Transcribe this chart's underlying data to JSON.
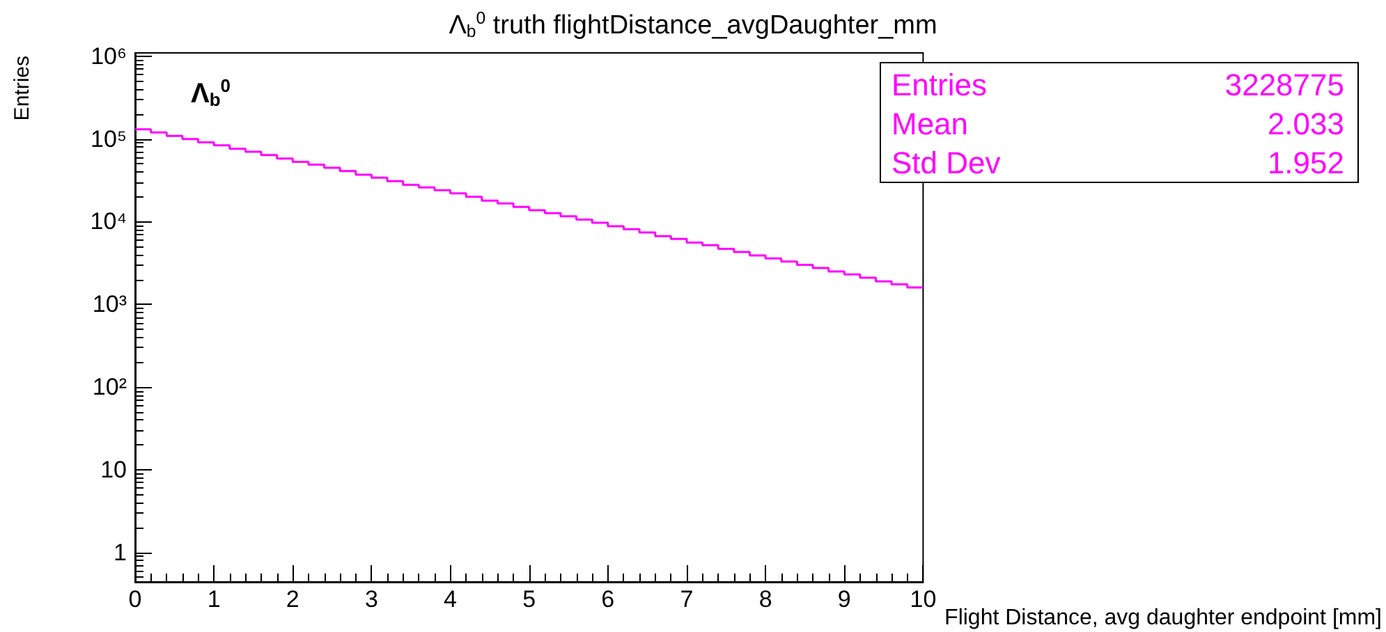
{
  "chart_data": {
    "type": "histogram",
    "title": "Λ$_{b}$$^{0}$ truth flightDistance_avgDaughter_mm",
    "xlabel": "Flight Distance, avg daughter endpoint [mm]",
    "ylabel": "Entries",
    "annotations": [
      "Λ$_{b}$$^{0}$",
      "Entries",
      "3228775",
      "Mean",
      "2.033",
      "Std Dev",
      "1.952"
    ],
    "bins": [
      0,
      0.2,
      0.4,
      0.6,
      0.8,
      1,
      1.2,
      1.4,
      1.6,
      1.8,
      2,
      2.2,
      2.4,
      2.6,
      2.8,
      3,
      3.2,
      3.4,
      3.6,
      3.8,
      4,
      4.2,
      4.4,
      4.6,
      4.8,
      5,
      5.2,
      5.4,
      5.6,
      5.8,
      6,
      6.2,
      6.4,
      6.6,
      6.8,
      7,
      7.2,
      7.4,
      7.6,
      7.8,
      8,
      8.2,
      8.4,
      8.6,
      8.8,
      9,
      9.2,
      9.4,
      9.6,
      9.8,
      10
    ],
    "values": [
      131000,
      120000,
      109000,
      100000,
      91000,
      84000,
      76000,
      70000,
      64000,
      58000,
      53000,
      49000,
      45000,
      41000,
      37000,
      34000,
      31000,
      28000,
      26000,
      24000,
      22000,
      20000,
      18000,
      16600,
      15100,
      13800,
      12700,
      11600,
      10600,
      9700,
      8800,
      8100,
      7400,
      6700,
      6200,
      5600,
      5200,
      4700,
      4300,
      3900,
      3600,
      3300,
      3000,
      2750,
      2500,
      2300,
      2100,
      1900,
      1750,
      1600
    ],
    "color": "#ff00ff",
    "xlim": [
      0,
      10
    ],
    "xticks": [
      0,
      1,
      2,
      3,
      4,
      5,
      6,
      7,
      8,
      9,
      10
    ],
    "ylim": [
      0.44,
      1100000
    ],
    "yticks": [
      1,
      10,
      {
        "value": 100,
        "label": "10²"
      },
      {
        "value": 1000,
        "label": "10³"
      },
      {
        "value": 10000,
        "label": "10⁴"
      },
      {
        "value": 100000,
        "label": "10⁵"
      },
      {
        "value": 1000000,
        "label": "10⁶"
      }
    ],
    "log": "y",
    "grid": false
  }
}
